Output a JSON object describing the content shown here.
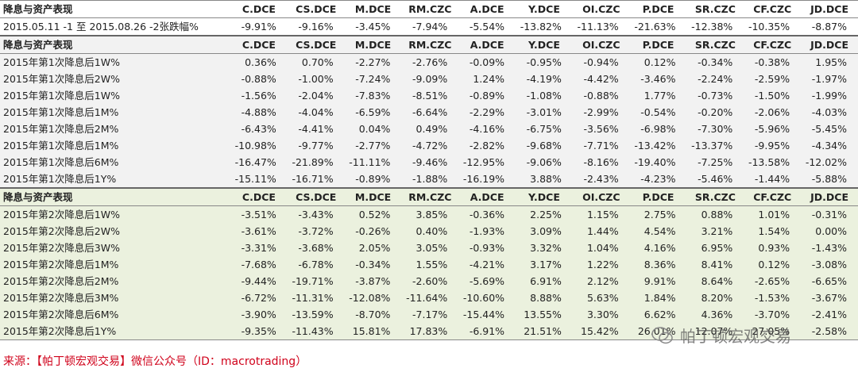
{
  "sections": [
    {
      "header": [
        "降息与资产表现",
        "C.DCE",
        "CS.DCE",
        "M.DCE",
        "RM.CZC",
        "A.DCE",
        "Y.DCE",
        "OI.CZC",
        "P.DCE",
        "SR.CZC",
        "CF.CZC",
        "JD.DCE"
      ],
      "rows": [
        {
          "label": "2015.05.11 -1 至 2015.08.26 -2张跌幅%",
          "values": [
            "-9.91%",
            "-9.16%",
            "-3.45%",
            "-7.94%",
            "-5.54%",
            "-13.82%",
            "-11.13%",
            "-21.63%",
            "-12.38%",
            "-10.35%",
            "-8.87%"
          ]
        }
      ]
    },
    {
      "header": [
        "降息与资产表现",
        "C.DCE",
        "CS.DCE",
        "M.DCE",
        "RM.CZC",
        "A.DCE",
        "Y.DCE",
        "OI.CZC",
        "P.DCE",
        "SR.CZC",
        "CF.CZC",
        "JD.DCE"
      ],
      "rows": [
        {
          "label": "2015年第1次降息后1W%",
          "values": [
            "0.36%",
            "0.70%",
            "-2.27%",
            "-2.76%",
            "-0.09%",
            "-0.95%",
            "-0.94%",
            "0.12%",
            "-0.34%",
            "-0.38%",
            "1.95%"
          ]
        },
        {
          "label": "2015年第1次降息后2W%",
          "values": [
            "-0.88%",
            "-1.00%",
            "-7.24%",
            "-9.09%",
            "1.24%",
            "-4.19%",
            "-4.42%",
            "-3.46%",
            "-2.24%",
            "-2.59%",
            "-1.97%"
          ]
        },
        {
          "label": "2015年第1次降息后1W%",
          "values": [
            "-1.56%",
            "-2.04%",
            "-7.83%",
            "-8.51%",
            "-0.89%",
            "-1.08%",
            "-0.88%",
            "1.77%",
            "-0.73%",
            "-1.50%",
            "-1.99%"
          ]
        },
        {
          "label": "2015年第1次降息后1M%",
          "values": [
            "-4.88%",
            "-4.04%",
            "-6.59%",
            "-6.64%",
            "-2.29%",
            "-3.01%",
            "-2.99%",
            "-0.54%",
            "-0.20%",
            "-2.06%",
            "-4.03%"
          ]
        },
        {
          "label": "2015年第1次降息后2M%",
          "values": [
            "-6.43%",
            "-4.41%",
            "0.04%",
            "0.49%",
            "-4.16%",
            "-6.75%",
            "-3.56%",
            "-6.98%",
            "-7.30%",
            "-5.96%",
            "-5.45%"
          ]
        },
        {
          "label": "2015年第1次降息后1M%",
          "values": [
            "-10.98%",
            "-9.77%",
            "-2.77%",
            "-4.72%",
            "-2.82%",
            "-9.68%",
            "-7.71%",
            "-13.42%",
            "-13.37%",
            "-9.95%",
            "-4.34%"
          ]
        },
        {
          "label": "2015年第1次降息后6M%",
          "values": [
            "-16.47%",
            "-21.89%",
            "-11.11%",
            "-9.46%",
            "-12.95%",
            "-9.06%",
            "-8.16%",
            "-19.40%",
            "-7.25%",
            "-13.58%",
            "-12.02%"
          ]
        },
        {
          "label": "2015年第1次降息后1Y%",
          "values": [
            "-15.11%",
            "-16.71%",
            "-0.89%",
            "-1.88%",
            "-16.19%",
            "3.88%",
            "-2.43%",
            "-4.23%",
            "-5.46%",
            "-1.44%",
            "-5.88%"
          ]
        }
      ]
    },
    {
      "header": [
        "降息与资产表现",
        "C.DCE",
        "CS.DCE",
        "M.DCE",
        "RM.CZC",
        "A.DCE",
        "Y.DCE",
        "OI.CZC",
        "P.DCE",
        "SR.CZC",
        "CF.CZC",
        "JD.DCE"
      ],
      "rows": [
        {
          "label": "2015年第2次降息后1W%",
          "values": [
            "-3.51%",
            "-3.43%",
            "0.52%",
            "3.85%",
            "-0.36%",
            "2.25%",
            "1.15%",
            "2.75%",
            "0.88%",
            "1.01%",
            "-0.31%"
          ]
        },
        {
          "label": "2015年第2次降息后2W%",
          "values": [
            "-3.61%",
            "-3.72%",
            "-0.26%",
            "0.40%",
            "-1.93%",
            "3.09%",
            "1.44%",
            "4.54%",
            "3.21%",
            "1.54%",
            "0.00%"
          ]
        },
        {
          "label": "2015年第2次降息后3W%",
          "values": [
            "-3.31%",
            "-3.68%",
            "2.05%",
            "3.05%",
            "-0.93%",
            "3.32%",
            "1.04%",
            "4.16%",
            "6.95%",
            "0.93%",
            "-1.43%"
          ]
        },
        {
          "label": "2015年第2次降息后1M%",
          "values": [
            "-7.68%",
            "-6.78%",
            "-0.34%",
            "1.55%",
            "-4.21%",
            "3.17%",
            "1.22%",
            "8.36%",
            "8.41%",
            "0.12%",
            "-3.08%"
          ]
        },
        {
          "label": "2015年第2次降息后2M%",
          "values": [
            "-9.44%",
            "-19.71%",
            "-3.87%",
            "-2.60%",
            "-5.69%",
            "6.91%",
            "2.12%",
            "9.91%",
            "8.64%",
            "-2.65%",
            "-6.65%"
          ]
        },
        {
          "label": "2015年第2次降息后3M%",
          "values": [
            "-6.72%",
            "-11.31%",
            "-12.08%",
            "-11.64%",
            "-10.60%",
            "8.88%",
            "5.63%",
            "1.84%",
            "8.20%",
            "-1.53%",
            "-3.67%"
          ]
        },
        {
          "label": "2015年第2次降息后6M%",
          "values": [
            "-3.90%",
            "-13.59%",
            "-8.70%",
            "-7.17%",
            "-15.44%",
            "13.55%",
            "3.30%",
            "6.62%",
            "4.36%",
            "-3.70%",
            "-2.41%"
          ]
        },
        {
          "label": "2015年第2次降息后1Y%",
          "values": [
            "-9.35%",
            "-11.43%",
            "15.81%",
            "17.83%",
            "-6.91%",
            "21.51%",
            "15.42%",
            "26.01%",
            "12.07%",
            "27.05%",
            "-2.58%"
          ]
        }
      ]
    }
  ],
  "footer": "来源：【帕丁顿宏观交易】微信公众号（ID：macrotrading）",
  "watermark": "帕丁顿宏观交易"
}
